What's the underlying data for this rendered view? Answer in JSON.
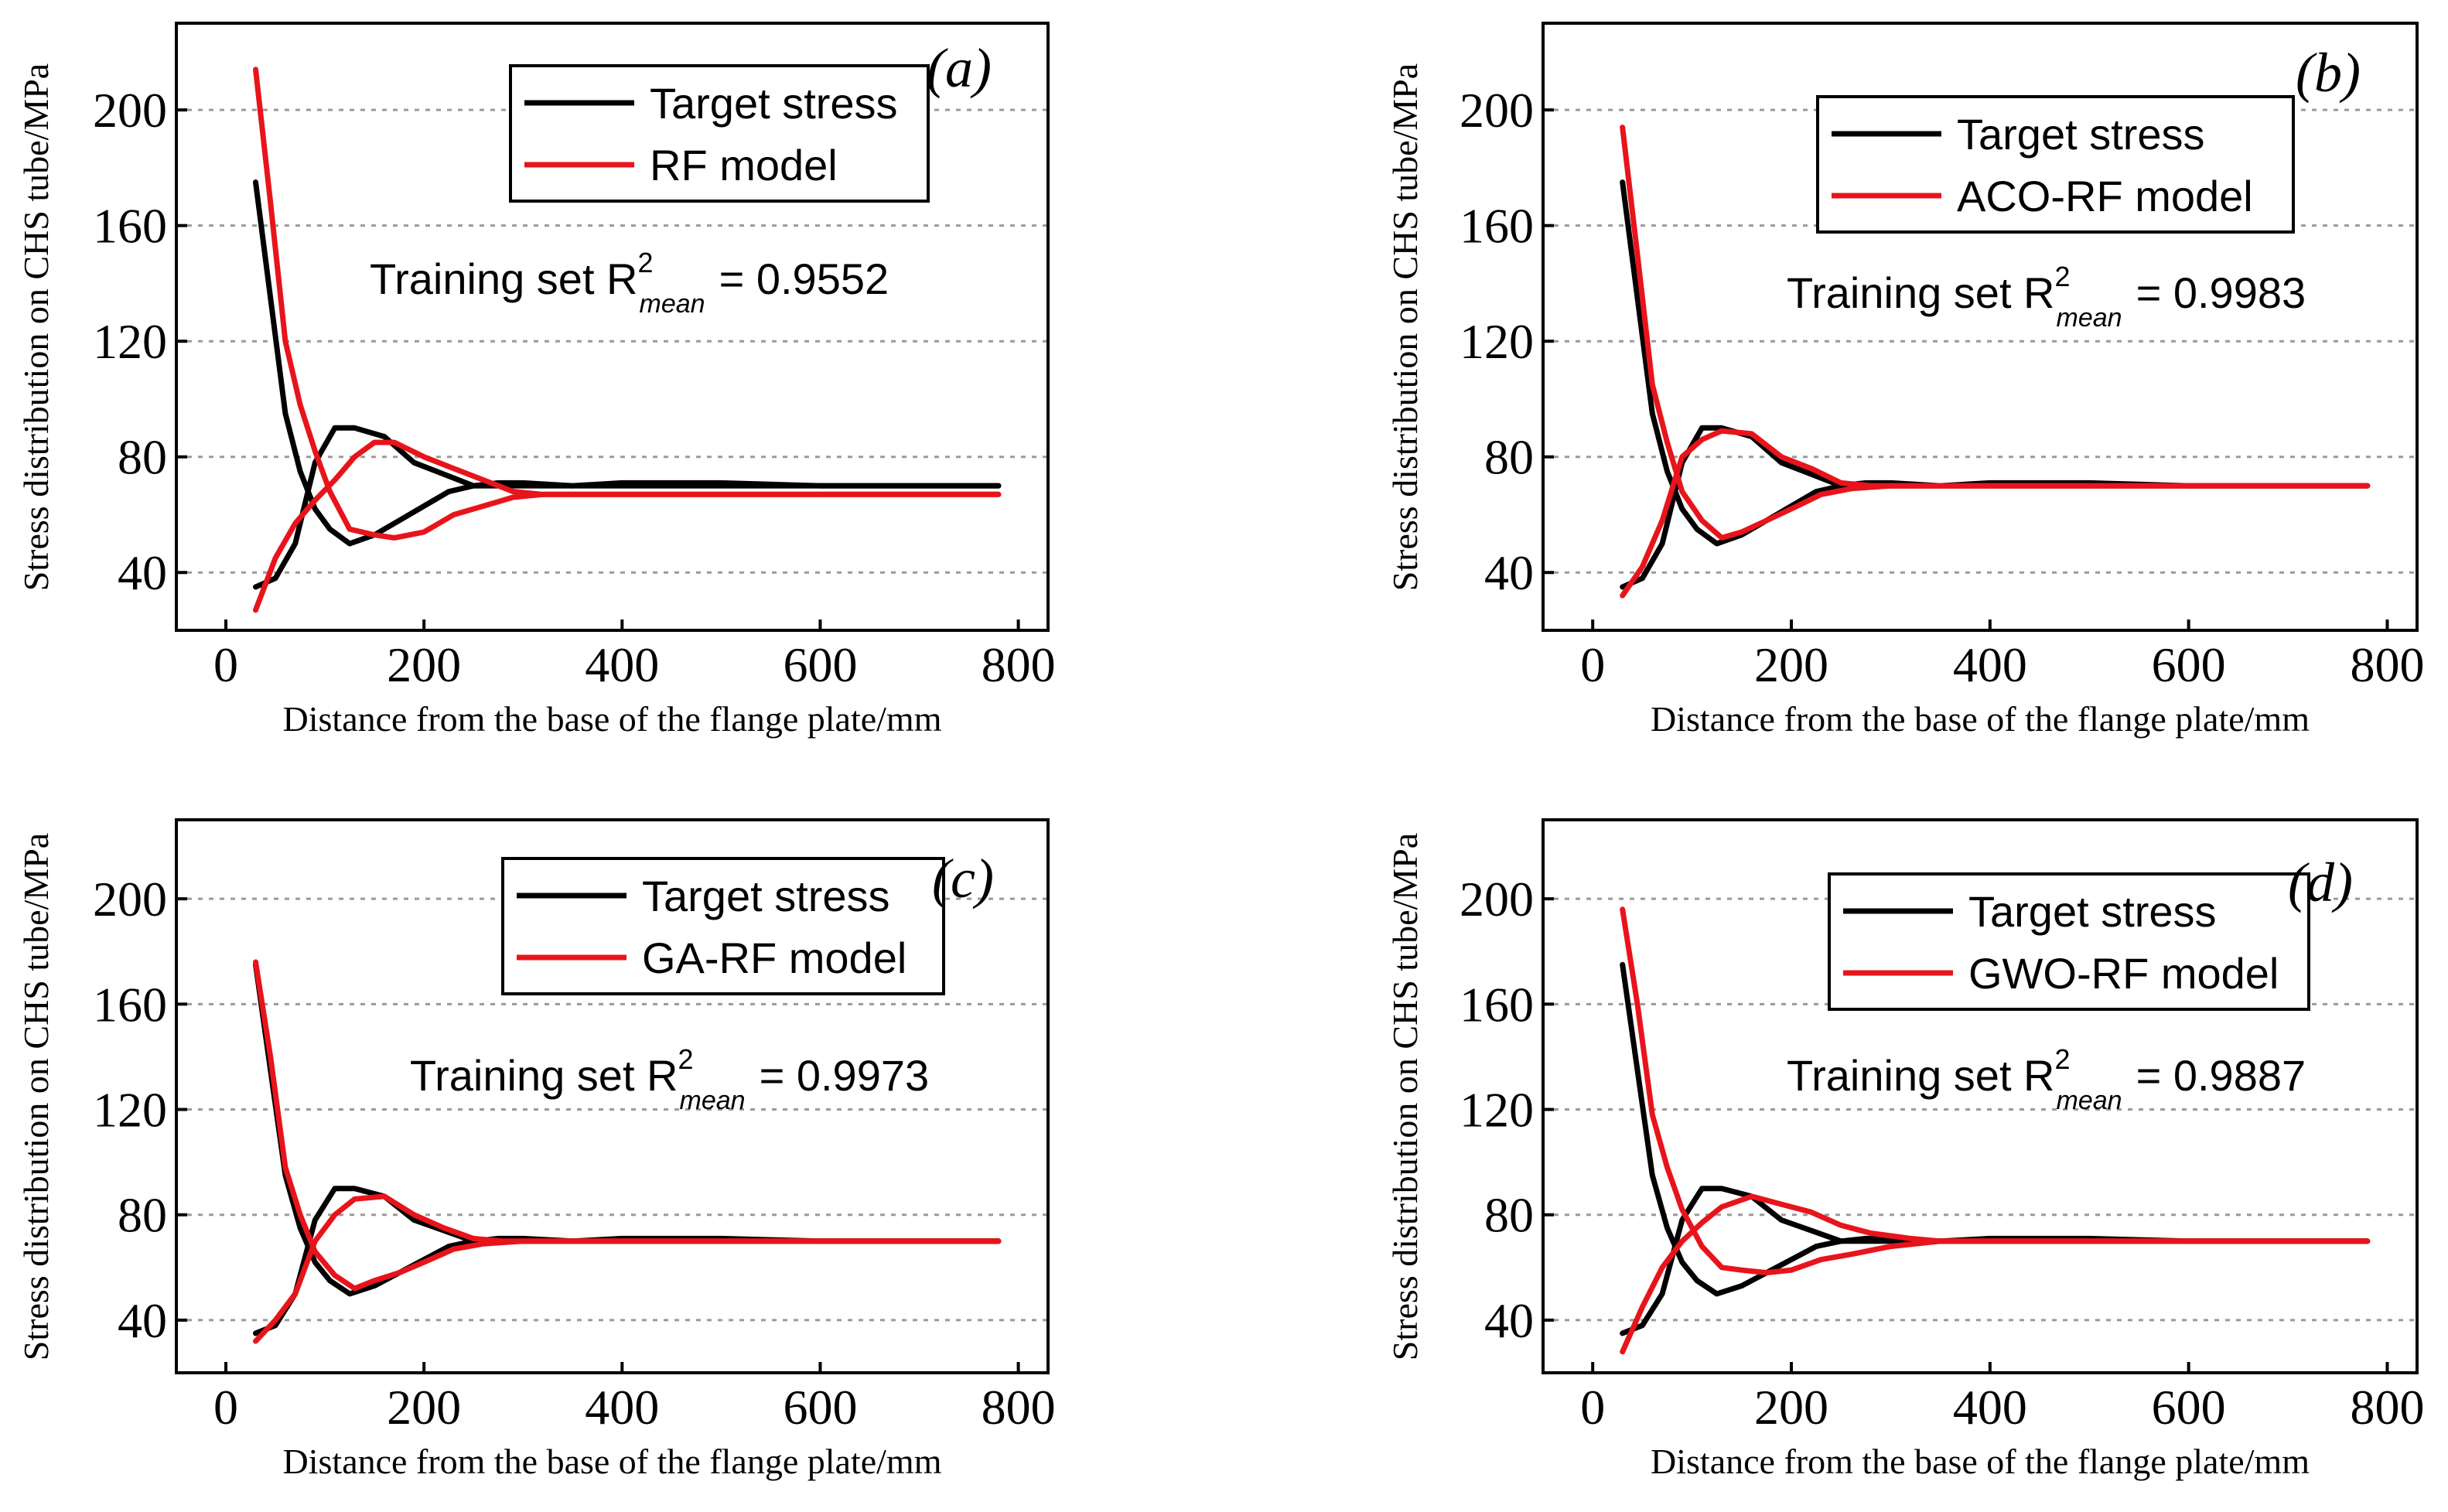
{
  "colors": {
    "target": "#000000",
    "model": "#e8141b",
    "grid": "#9a9a9a",
    "axis": "#000000"
  },
  "chart_data": [
    {
      "type": "line",
      "panel_label": "(a)",
      "xlabel": "Distance from the base of the flange plate/mm",
      "ylabel": "Stress distribution on CHS tube/MPa",
      "xlim": [
        -50,
        830
      ],
      "ylim": [
        20,
        230
      ],
      "xticks": [
        0,
        200,
        400,
        600,
        800
      ],
      "yticks": [
        40,
        80,
        120,
        160,
        200
      ],
      "grid": true,
      "annotation": {
        "prefix": "Training set  R",
        "sup": "2",
        "sub": "mean",
        "value": "= 0.9552"
      },
      "legend": {
        "position": "top-right",
        "entries": [
          "Target  stress",
          "RF model"
        ]
      },
      "series": [
        {
          "name": "Target stress (outer)",
          "role": "target",
          "x": [
            30,
            45,
            60,
            75,
            90,
            105,
            125,
            150,
            175,
            200,
            225,
            250,
            275,
            300,
            350,
            400,
            450,
            500,
            550,
            600,
            650,
            700,
            750,
            780
          ],
          "y": [
            175,
            135,
            95,
            75,
            62,
            55,
            50,
            53,
            58,
            63,
            68,
            70,
            71,
            71,
            70,
            70,
            70,
            70,
            70,
            70,
            70,
            70,
            70,
            70
          ]
        },
        {
          "name": "Target stress (inner)",
          "role": "target",
          "x": [
            30,
            50,
            70,
            90,
            110,
            130,
            160,
            190,
            220,
            250,
            280,
            310,
            350,
            400,
            500,
            600,
            700,
            780
          ],
          "y": [
            35,
            38,
            50,
            78,
            90,
            90,
            87,
            78,
            74,
            70,
            70,
            70,
            70,
            71,
            71,
            70,
            70,
            70
          ]
        },
        {
          "name": "RF model (outer)",
          "role": "model",
          "x": [
            30,
            45,
            60,
            75,
            90,
            105,
            125,
            150,
            170,
            200,
            230,
            260,
            290,
            320,
            400,
            500,
            600,
            700,
            780
          ],
          "y": [
            214,
            168,
            120,
            98,
            82,
            68,
            55,
            53,
            52,
            54,
            60,
            63,
            66,
            67,
            67,
            67,
            67,
            67,
            67
          ]
        },
        {
          "name": "RF model (inner)",
          "role": "model",
          "x": [
            30,
            50,
            70,
            90,
            110,
            130,
            150,
            170,
            200,
            230,
            260,
            290,
            320,
            400,
            500,
            600,
            700,
            780
          ],
          "y": [
            27,
            45,
            57,
            65,
            72,
            80,
            85,
            85,
            80,
            76,
            72,
            68,
            67,
            67,
            67,
            67,
            67,
            67
          ]
        }
      ]
    },
    {
      "type": "line",
      "panel_label": "(b)",
      "xlabel": "Distance from the base of the flange plate/mm",
      "ylabel": "Stress distribution on CHS tube/MPa",
      "xlim": [
        -50,
        830
      ],
      "ylim": [
        20,
        230
      ],
      "xticks": [
        0,
        200,
        400,
        600,
        800
      ],
      "yticks": [
        40,
        80,
        120,
        160,
        200
      ],
      "grid": true,
      "annotation": {
        "prefix": "Training set  R",
        "sup": "2",
        "sub": "mean",
        "value": "= 0.9983"
      },
      "legend": {
        "position": "top-right",
        "entries": [
          "Target  stress",
          "ACO-RF model"
        ]
      },
      "series": [
        {
          "name": "Target stress (outer)",
          "role": "target",
          "x": [
            30,
            45,
            60,
            75,
            90,
            105,
            125,
            150,
            175,
            200,
            225,
            250,
            275,
            300,
            350,
            400,
            450,
            500,
            550,
            600,
            650,
            700,
            750,
            780
          ],
          "y": [
            175,
            135,
            95,
            75,
            62,
            55,
            50,
            53,
            58,
            63,
            68,
            70,
            71,
            71,
            70,
            70,
            70,
            70,
            70,
            70,
            70,
            70,
            70,
            70
          ]
        },
        {
          "name": "Target stress (inner)",
          "role": "target",
          "x": [
            30,
            50,
            70,
            90,
            110,
            130,
            160,
            190,
            220,
            250,
            280,
            310,
            350,
            400,
            500,
            600,
            700,
            780
          ],
          "y": [
            35,
            38,
            50,
            78,
            90,
            90,
            87,
            78,
            74,
            70,
            70,
            70,
            70,
            71,
            71,
            70,
            70,
            70
          ]
        },
        {
          "name": "ACO-RF model (outer)",
          "role": "model",
          "x": [
            30,
            45,
            60,
            75,
            90,
            110,
            130,
            150,
            175,
            200,
            230,
            260,
            300,
            400,
            500,
            600,
            700,
            780
          ],
          "y": [
            194,
            150,
            105,
            85,
            68,
            58,
            52,
            54,
            58,
            62,
            67,
            69,
            70,
            70,
            70,
            70,
            70,
            70
          ]
        },
        {
          "name": "ACO-RF model (inner)",
          "role": "model",
          "x": [
            30,
            50,
            70,
            90,
            110,
            130,
            160,
            190,
            220,
            250,
            280,
            320,
            400,
            500,
            600,
            700,
            780
          ],
          "y": [
            32,
            42,
            58,
            80,
            86,
            89,
            88,
            80,
            76,
            71,
            70,
            70,
            70,
            70,
            70,
            70,
            70
          ]
        }
      ]
    },
    {
      "type": "line",
      "panel_label": "(c)",
      "xlabel": "Distance from the base of the flange plate/mm",
      "ylabel": "Stress distribution on CHS tube/MPa",
      "xlim": [
        -50,
        830
      ],
      "ylim": [
        20,
        230
      ],
      "xticks": [
        0,
        200,
        400,
        600,
        800
      ],
      "yticks": [
        40,
        80,
        120,
        160,
        200
      ],
      "grid": true,
      "annotation": {
        "prefix": "Training set  R",
        "sup": "2",
        "sub": "mean",
        "value": "= 0.9973"
      },
      "legend": {
        "position": "top-right",
        "entries": [
          "Target  stress",
          "GA-RF model"
        ]
      },
      "series": [
        {
          "name": "Target stress (outer)",
          "role": "target",
          "x": [
            30,
            45,
            60,
            75,
            90,
            105,
            125,
            150,
            175,
            200,
            225,
            250,
            275,
            300,
            350,
            400,
            450,
            500,
            550,
            600,
            650,
            700,
            750,
            780
          ],
          "y": [
            175,
            135,
            95,
            75,
            62,
            55,
            50,
            53,
            58,
            63,
            68,
            70,
            71,
            71,
            70,
            70,
            70,
            70,
            70,
            70,
            70,
            70,
            70,
            70
          ]
        },
        {
          "name": "Target stress (inner)",
          "role": "target",
          "x": [
            30,
            50,
            70,
            90,
            110,
            130,
            160,
            190,
            220,
            250,
            280,
            310,
            350,
            400,
            500,
            600,
            700,
            780
          ],
          "y": [
            35,
            38,
            50,
            78,
            90,
            90,
            87,
            78,
            74,
            70,
            70,
            70,
            70,
            71,
            71,
            70,
            70,
            70
          ]
        },
        {
          "name": "GA-RF model (outer)",
          "role": "model",
          "x": [
            30,
            45,
            60,
            75,
            90,
            110,
            130,
            150,
            175,
            200,
            230,
            260,
            300,
            400,
            500,
            600,
            700,
            780
          ],
          "y": [
            176,
            140,
            98,
            80,
            66,
            57,
            52,
            55,
            58,
            62,
            67,
            69,
            70,
            70,
            70,
            70,
            70,
            70
          ]
        },
        {
          "name": "GA-RF model (inner)",
          "role": "model",
          "x": [
            30,
            50,
            70,
            90,
            110,
            130,
            160,
            190,
            220,
            250,
            280,
            320,
            400,
            500,
            600,
            700,
            780
          ],
          "y": [
            32,
            40,
            50,
            70,
            80,
            86,
            87,
            80,
            75,
            71,
            70,
            70,
            70,
            70,
            70,
            70,
            70
          ]
        }
      ]
    },
    {
      "type": "line",
      "panel_label": "(d)",
      "xlabel": "Distance from the base of the flange plate/mm",
      "ylabel": "Stress distribution on CHS tube/MPa",
      "xlim": [
        -50,
        830
      ],
      "ylim": [
        20,
        230
      ],
      "xticks": [
        0,
        200,
        400,
        600,
        800
      ],
      "yticks": [
        40,
        80,
        120,
        160,
        200
      ],
      "grid": true,
      "annotation": {
        "prefix": "Training set  R",
        "sup": "2",
        "sub": "mean",
        "value": "= 0.9887"
      },
      "legend": {
        "position": "top-right",
        "entries": [
          "Target  stress",
          "GWO-RF model"
        ]
      },
      "series": [
        {
          "name": "Target stress (outer)",
          "role": "target",
          "x": [
            30,
            45,
            60,
            75,
            90,
            105,
            125,
            150,
            175,
            200,
            225,
            250,
            275,
            300,
            350,
            400,
            450,
            500,
            550,
            600,
            650,
            700,
            750,
            780
          ],
          "y": [
            175,
            135,
            95,
            75,
            62,
            55,
            50,
            53,
            58,
            63,
            68,
            70,
            71,
            71,
            70,
            70,
            70,
            70,
            70,
            70,
            70,
            70,
            70,
            70
          ]
        },
        {
          "name": "Target stress (inner)",
          "role": "target",
          "x": [
            30,
            50,
            70,
            90,
            110,
            130,
            160,
            190,
            220,
            250,
            280,
            310,
            350,
            400,
            500,
            600,
            700,
            780
          ],
          "y": [
            35,
            38,
            50,
            78,
            90,
            90,
            87,
            78,
            74,
            70,
            70,
            70,
            70,
            71,
            71,
            70,
            70,
            70
          ]
        },
        {
          "name": "GWO-RF model (outer)",
          "role": "model",
          "x": [
            30,
            45,
            60,
            75,
            90,
            110,
            130,
            150,
            175,
            200,
            230,
            260,
            300,
            350,
            400,
            500,
            600,
            700,
            780
          ],
          "y": [
            196,
            160,
            118,
            98,
            82,
            68,
            60,
            59,
            58,
            59,
            63,
            65,
            68,
            70,
            70,
            70,
            70,
            70,
            70
          ]
        },
        {
          "name": "GWO-RF model (inner)",
          "role": "model",
          "x": [
            30,
            50,
            70,
            90,
            110,
            130,
            160,
            190,
            220,
            250,
            280,
            320,
            350,
            400,
            500,
            600,
            700,
            780
          ],
          "y": [
            28,
            45,
            60,
            70,
            77,
            83,
            87,
            84,
            81,
            76,
            73,
            71,
            70,
            70,
            70,
            70,
            70,
            70
          ]
        }
      ]
    }
  ]
}
